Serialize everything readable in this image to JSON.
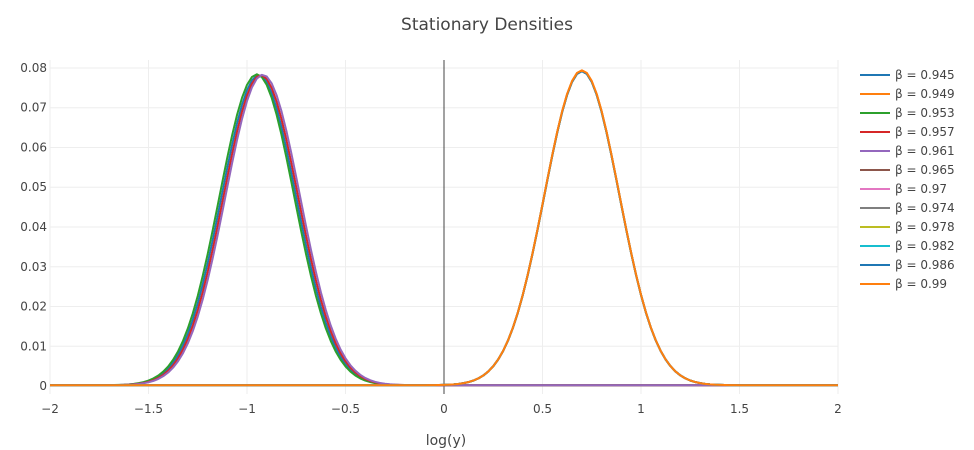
{
  "chart_data": {
    "type": "line",
    "title": "Stationary Densities",
    "xlabel": "log(y)",
    "ylabel": "",
    "xlim": [
      -2,
      2
    ],
    "ylim": [
      -0.002,
      0.082
    ],
    "x_ticks": [
      -2,
      -1.5,
      -1,
      -0.5,
      0,
      0.5,
      1,
      1.5,
      2
    ],
    "x_tick_labels": [
      "−2",
      "−1.5",
      "−1",
      "−0.5",
      "0",
      "0.5",
      "1",
      "1.5",
      "2"
    ],
    "y_ticks": [
      0,
      0.01,
      0.02,
      0.03,
      0.04,
      0.05,
      0.06,
      0.07,
      0.08
    ],
    "y_tick_labels": [
      "0",
      "0.01",
      "0.02",
      "0.03",
      "0.04",
      "0.05",
      "0.06",
      "0.07",
      "0.08"
    ],
    "grid": true,
    "zero_line_x": 0,
    "legend_position": "right",
    "series": [
      {
        "name": "β = 0.945",
        "color": "#1f77b4",
        "shape": "left-peak",
        "peak_x": -0.94,
        "peak_y": 0.078,
        "sigma": 0.19
      },
      {
        "name": "β = 0.949",
        "color": "#ff7f0e",
        "shape": "right-peak",
        "peak_x": 0.7,
        "peak_y": 0.0792,
        "sigma": 0.19
      },
      {
        "name": "β = 0.953",
        "color": "#2ca02c",
        "shape": "left-peak",
        "peak_x": -0.95,
        "peak_y": 0.0782,
        "sigma": 0.19
      },
      {
        "name": "β = 0.957",
        "color": "#d62728",
        "shape": "left-peak",
        "peak_x": -0.93,
        "peak_y": 0.078,
        "sigma": 0.19
      },
      {
        "name": "β = 0.961",
        "color": "#9467bd",
        "shape": "left-peak",
        "peak_x": -0.92,
        "peak_y": 0.0781,
        "sigma": 0.19
      },
      {
        "name": "β = 0.965",
        "color": "#8c564b",
        "shape": "right-peak",
        "peak_x": 0.7,
        "peak_y": 0.079,
        "sigma": 0.19
      },
      {
        "name": "β = 0.97",
        "color": "#e377c2",
        "shape": "right-peak",
        "peak_x": 0.7,
        "peak_y": 0.079,
        "sigma": 0.19
      },
      {
        "name": "β = 0.974",
        "color": "#7f7f7f",
        "shape": "right-peak",
        "peak_x": 0.7,
        "peak_y": 0.079,
        "sigma": 0.19
      },
      {
        "name": "β = 0.978",
        "color": "#bcbd22",
        "shape": "right-peak",
        "peak_x": 0.7,
        "peak_y": 0.079,
        "sigma": 0.19
      },
      {
        "name": "β = 0.982",
        "color": "#17becf",
        "shape": "right-peak",
        "peak_x": 0.7,
        "peak_y": 0.079,
        "sigma": 0.19
      },
      {
        "name": "β = 0.986",
        "color": "#1f77b4",
        "shape": "right-peak",
        "peak_x": 0.7,
        "peak_y": 0.079,
        "sigma": 0.19
      },
      {
        "name": "β = 0.99",
        "color": "#ff7f0e",
        "shape": "right-peak",
        "peak_x": 0.7,
        "peak_y": 0.0792,
        "sigma": 0.19
      }
    ]
  }
}
